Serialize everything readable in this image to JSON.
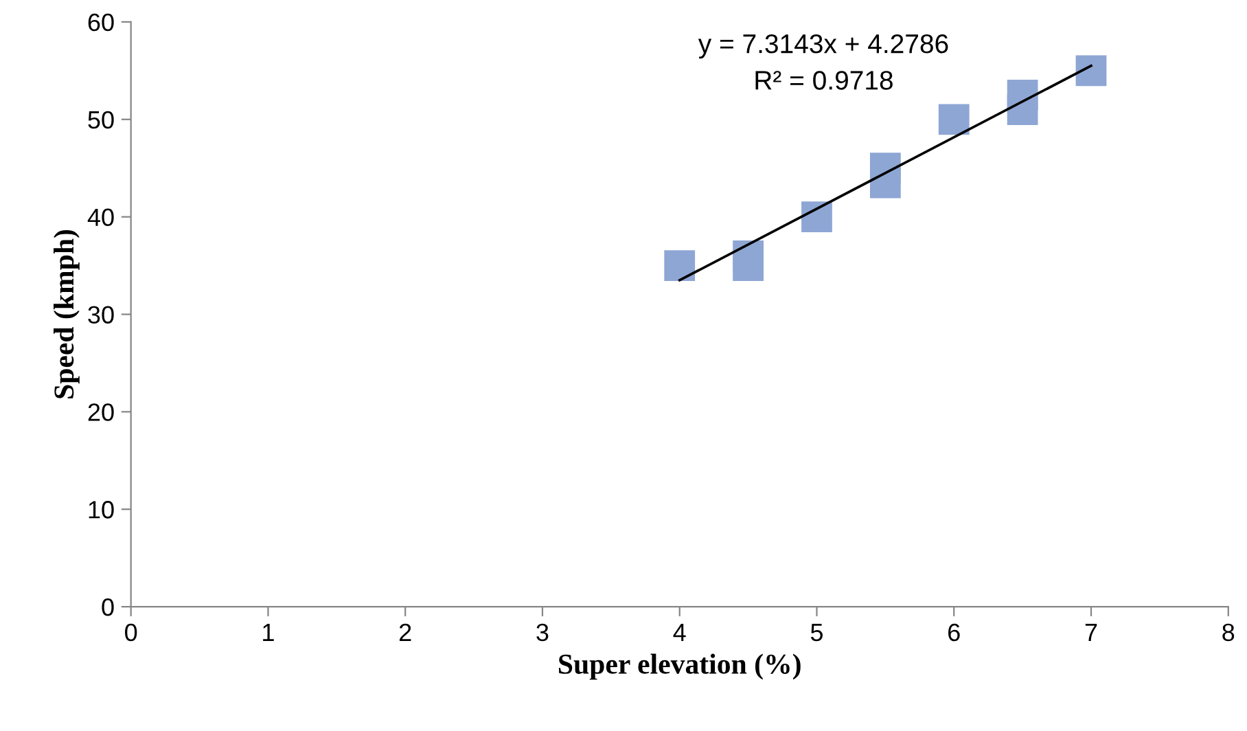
{
  "chart_data": {
    "type": "scatter",
    "xlabel": "Super elevation (%)",
    "ylabel": "Speed (kmph)",
    "xlim": [
      0,
      8
    ],
    "ylim": [
      0,
      60
    ],
    "xticks": [
      0,
      1,
      2,
      3,
      4,
      5,
      6,
      7,
      8
    ],
    "yticks": [
      0,
      10,
      20,
      30,
      40,
      50,
      60
    ],
    "grid": false,
    "series": [
      {
        "marker": "square",
        "color": "#8ea6d4",
        "x": [
          4,
          4.5,
          4.5,
          5,
          5.5,
          5.5,
          6,
          6.5,
          6.5,
          7
        ],
        "values": [
          35,
          35,
          36,
          40,
          43.5,
          45,
          50,
          51,
          52.5,
          55
        ]
      },
      {
        "type": "line",
        "marker": "none",
        "color": "#000000",
        "x": [
          4,
          7
        ],
        "values": [
          33.5,
          55.5
        ]
      }
    ],
    "annotations": [
      "y = 7.3143x + 4.2786\nR² = 0.9718"
    ]
  }
}
